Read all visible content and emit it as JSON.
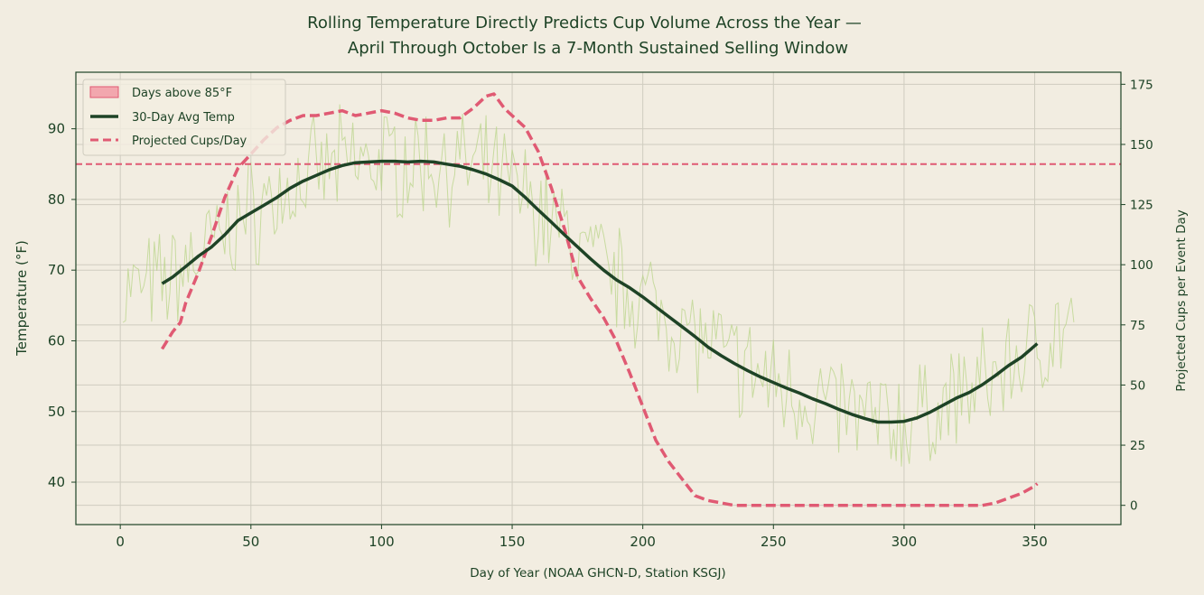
{
  "chart_data": {
    "type": "line",
    "title_line1": "Rolling Temperature Directly Predicts Cup Volume Across the Year —",
    "title_line2": "April Through October Is a 7-Month Sustained Selling Window",
    "xlabel": "Day of Year (NOAA GHCN-D, Station KSGJ)",
    "ylabel_left": "Temperature (°F)",
    "ylabel_right": "Projected Cups per Event Day",
    "xlim": [
      -17,
      383
    ],
    "ylim_left": [
      34,
      98
    ],
    "ylim_right": [
      -8,
      180
    ],
    "xticks": [
      0,
      50,
      100,
      150,
      200,
      250,
      300,
      350
    ],
    "yticks_left": [
      40,
      50,
      60,
      70,
      80,
      90
    ],
    "yticks_right": [
      0,
      25,
      50,
      75,
      100,
      125,
      150,
      175
    ],
    "grid": true,
    "legend_position": "upper-left",
    "threshold": {
      "value": 85,
      "label": "Days above 85°F"
    },
    "colors": {
      "background": "#f2ede1",
      "axes": "#1e4326",
      "avg_temp": "#1e4326",
      "cups": "#e05a73",
      "daily": "#b9d48a",
      "threshold": "#e05a73",
      "grid": "#cfccbf"
    },
    "legend": [
      {
        "label": "Days above 85°F",
        "kind": "patch"
      },
      {
        "label": "30-Day Avg Temp",
        "kind": "line"
      },
      {
        "label": "Projected Cups/Day",
        "kind": "dashed"
      }
    ],
    "series": [
      {
        "name": "30-Day Avg Temp",
        "axis": "left",
        "x": [
          16,
          20,
          25,
          30,
          35,
          40,
          45,
          50,
          55,
          60,
          65,
          70,
          75,
          80,
          85,
          90,
          95,
          100,
          105,
          110,
          115,
          120,
          125,
          130,
          135,
          140,
          145,
          150,
          155,
          160,
          165,
          170,
          175,
          180,
          185,
          190,
          195,
          200,
          205,
          210,
          215,
          220,
          225,
          230,
          235,
          240,
          245,
          250,
          255,
          260,
          265,
          270,
          275,
          280,
          285,
          290,
          295,
          300,
          305,
          310,
          315,
          320,
          325,
          330,
          335,
          340,
          345,
          351
        ],
        "y": [
          68.1,
          69.0,
          70.5,
          72.0,
          73.3,
          75.0,
          77.0,
          78.1,
          79.2,
          80.3,
          81.6,
          82.6,
          83.4,
          84.2,
          84.8,
          85.2,
          85.3,
          85.4,
          85.4,
          85.3,
          85.4,
          85.3,
          85.0,
          84.7,
          84.2,
          83.6,
          82.8,
          81.9,
          80.3,
          78.5,
          76.8,
          75.0,
          73.3,
          71.6,
          70.0,
          68.6,
          67.5,
          66.2,
          64.8,
          63.4,
          62.0,
          60.6,
          59.1,
          57.9,
          56.8,
          55.8,
          54.9,
          54.1,
          53.3,
          52.6,
          51.8,
          51.1,
          50.3,
          49.6,
          49.0,
          48.5,
          48.5,
          48.6,
          49.1,
          49.9,
          50.9,
          51.9,
          52.7,
          53.8,
          55.1,
          56.5,
          57.7,
          59.6
        ]
      },
      {
        "name": "Projected Cups/Day",
        "axis": "right",
        "x": [
          16,
          20,
          23,
          25,
          30,
          35,
          40,
          45,
          50,
          55,
          60,
          65,
          70,
          75,
          80,
          85,
          90,
          95,
          100,
          105,
          110,
          115,
          120,
          125,
          130,
          135,
          140,
          143,
          147,
          150,
          155,
          160,
          165,
          170,
          175,
          180,
          185,
          190,
          195,
          200,
          205,
          210,
          215,
          220,
          225,
          230,
          235,
          240,
          250,
          260,
          270,
          280,
          290,
          300,
          310,
          320,
          330,
          335,
          340,
          345,
          350,
          351
        ],
        "y": [
          65,
          72,
          76,
          84,
          97,
          112,
          128,
          140,
          146,
          152,
          157,
          160,
          162,
          162,
          163,
          164,
          162,
          163,
          164,
          163,
          161,
          160,
          160,
          161,
          161,
          165,
          170,
          171,
          165,
          162,
          157,
          147,
          132,
          115,
          95,
          86,
          78,
          68,
          55,
          41,
          27,
          18,
          11,
          4,
          2,
          1,
          0,
          0,
          0,
          0,
          0,
          0,
          0,
          0,
          0,
          0,
          0,
          1,
          3,
          5,
          8,
          9
        ]
      }
    ]
  }
}
